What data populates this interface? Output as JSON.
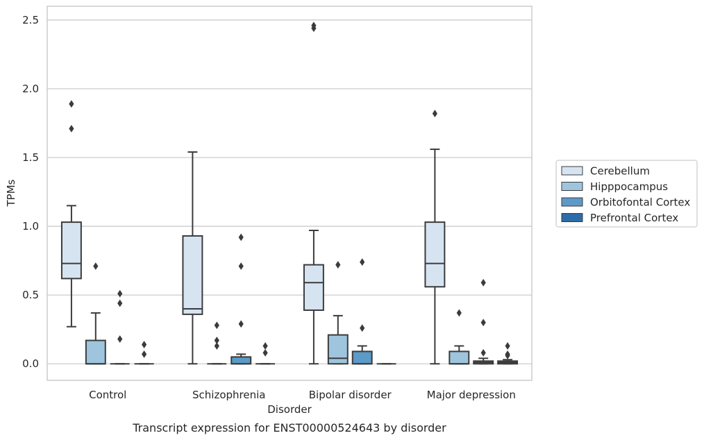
{
  "chart_data": {
    "type": "box",
    "title": "",
    "caption": "Transcript expression for ENST00000524643 by disorder",
    "xlabel": "Disorder",
    "ylabel": "TPMs",
    "ylim": [
      -0.12,
      2.6
    ],
    "yticks": [
      "0.0",
      "0.5",
      "1.0",
      "1.5",
      "2.0",
      "2.5"
    ],
    "ytick_values": [
      0,
      0.5,
      1.0,
      1.5,
      2.0,
      2.5
    ],
    "grid": "horizontal",
    "legend_position": "right",
    "categories": [
      "Control",
      "Schizophrenia",
      "Bipolar disorder",
      "Major depression"
    ],
    "series": [
      {
        "name": "Cerebellum",
        "color": "#d6e4f2",
        "boxes": [
          {
            "whislo": 0.27,
            "q1": 0.62,
            "med": 0.73,
            "q3": 1.03,
            "whishi": 1.15,
            "fliers": [
              1.71,
              1.89
            ]
          },
          {
            "whislo": 0.0,
            "q1": 0.36,
            "med": 0.4,
            "q3": 0.93,
            "whishi": 1.54,
            "fliers": []
          },
          {
            "whislo": 0.0,
            "q1": 0.39,
            "med": 0.59,
            "q3": 0.72,
            "whishi": 0.97,
            "fliers": [
              2.44,
              2.46
            ]
          },
          {
            "whislo": 0.0,
            "q1": 0.56,
            "med": 0.73,
            "q3": 1.03,
            "whishi": 1.56,
            "fliers": [
              1.82
            ]
          }
        ]
      },
      {
        "name": "Hipppocampus",
        "color": "#9fc5de",
        "boxes": [
          {
            "whislo": 0.0,
            "q1": 0.0,
            "med": 0.0,
            "q3": 0.17,
            "whishi": 0.37,
            "fliers": [
              0.71
            ]
          },
          {
            "whislo": 0.0,
            "q1": 0.0,
            "med": 0.0,
            "q3": 0.0,
            "whishi": 0.0,
            "fliers": [
              0.13,
              0.17,
              0.28
            ]
          },
          {
            "whislo": 0.0,
            "q1": 0.0,
            "med": 0.04,
            "q3": 0.21,
            "whishi": 0.35,
            "fliers": [
              0.72
            ]
          },
          {
            "whislo": 0.0,
            "q1": 0.0,
            "med": 0.0,
            "q3": 0.09,
            "whishi": 0.13,
            "fliers": [
              0.37
            ]
          }
        ]
      },
      {
        "name": "Orbitofontal Cortex",
        "color": "#5c9ac8",
        "boxes": [
          {
            "whislo": 0.0,
            "q1": 0.0,
            "med": 0.0,
            "q3": 0.0,
            "whishi": 0.0,
            "fliers": [
              0.18,
              0.44,
              0.51
            ]
          },
          {
            "whislo": 0.0,
            "q1": 0.0,
            "med": 0.0,
            "q3": 0.05,
            "whishi": 0.07,
            "fliers": [
              0.29,
              0.71,
              0.92
            ]
          },
          {
            "whislo": 0.0,
            "q1": 0.0,
            "med": 0.0,
            "q3": 0.09,
            "whishi": 0.13,
            "fliers": [
              0.26,
              0.74
            ]
          },
          {
            "whislo": 0.0,
            "q1": 0.0,
            "med": 0.01,
            "q3": 0.02,
            "whishi": 0.04,
            "fliers": [
              0.08,
              0.3,
              0.59
            ]
          }
        ]
      },
      {
        "name": "Prefrontal Cortex",
        "color": "#2e6ca8",
        "boxes": [
          {
            "whislo": 0.0,
            "q1": 0.0,
            "med": 0.0,
            "q3": 0.0,
            "whishi": 0.0,
            "fliers": [
              0.07,
              0.14
            ]
          },
          {
            "whislo": 0.0,
            "q1": 0.0,
            "med": 0.0,
            "q3": 0.0,
            "whishi": 0.0,
            "fliers": [
              0.08,
              0.13
            ]
          },
          {
            "whislo": 0.0,
            "q1": 0.0,
            "med": 0.0,
            "q3": 0.0,
            "whishi": 0.0,
            "fliers": []
          },
          {
            "whislo": 0.0,
            "q1": 0.0,
            "med": 0.01,
            "q3": 0.02,
            "whishi": 0.03,
            "fliers": [
              0.06,
              0.07,
              0.13
            ]
          }
        ]
      }
    ]
  }
}
